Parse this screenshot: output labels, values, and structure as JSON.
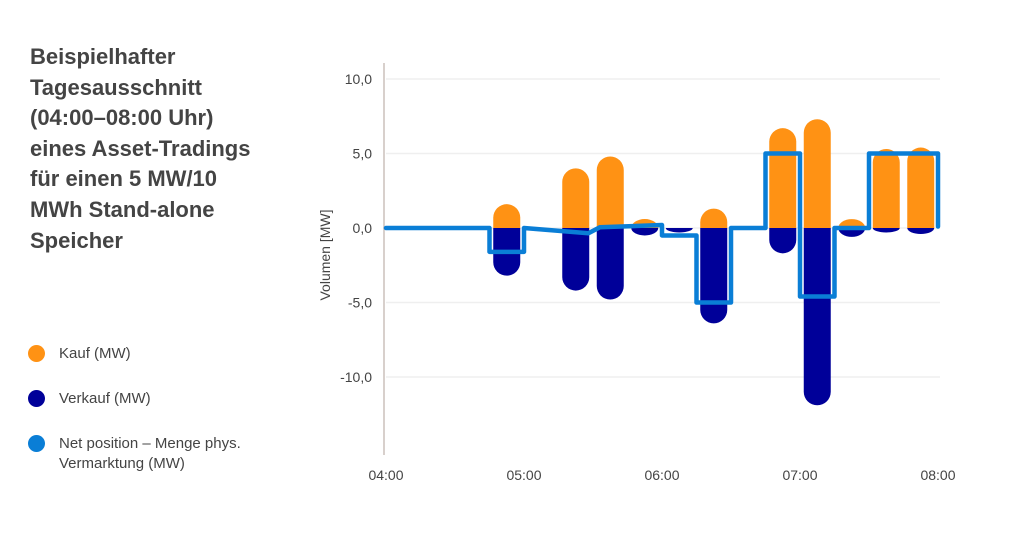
{
  "title_lines": [
    "Beispielhafter",
    "Tagesausschnitt",
    "(04:00–08:00 Uhr)",
    "eines Asset-Tradings",
    "für einen 5 MW/10",
    "MWh Stand-alone",
    "Speicher"
  ],
  "legend": [
    {
      "label": "Kauf (MW)",
      "color": "#FF9214"
    },
    {
      "label": "Verkauf (MW)",
      "color": "#000099"
    },
    {
      "label": "Net position – Menge phys. Vermarktung (MW)",
      "label_lines": [
        "Net position – Menge phys.",
        "Vermarktung (MW)"
      ],
      "color": "#0A7ED6"
    }
  ],
  "chart_data": {
    "type": "bar",
    "title": "Beispielhafter Tagesausschnitt (04:00–08:00 Uhr) eines Asset-Tradings für einen 5 MW/10 MWh Stand-alone Speicher",
    "xlabel": "",
    "ylabel": "Volumen [MW]",
    "x_unit": "minutes after 04:00",
    "xlim": [
      0,
      240
    ],
    "ylim": [
      -15,
      11
    ],
    "x_ticks": [
      {
        "t": 0,
        "label": "04:00"
      },
      {
        "t": 60,
        "label": "05:00"
      },
      {
        "t": 120,
        "label": "06:00"
      },
      {
        "t": 180,
        "label": "07:00"
      },
      {
        "t": 240,
        "label": "08:00"
      }
    ],
    "y_ticks": [
      {
        "v": 10,
        "label": "10,0"
      },
      {
        "v": 5,
        "label": "5,0"
      },
      {
        "v": 0,
        "label": "0,0"
      },
      {
        "v": -5,
        "label": "-5,0"
      },
      {
        "v": -10,
        "label": "-10,0"
      }
    ],
    "grid": true,
    "bar_slots": [
      52.5,
      82.5,
      97.5,
      112.5,
      127.5,
      142.5,
      172.5,
      187.5,
      202.5,
      217.5,
      232.5
    ],
    "series": [
      {
        "name": "Kauf (MW)",
        "color": "#FF9214",
        "values": [
          1.6,
          4.0,
          4.8,
          0.6,
          0,
          1.3,
          6.7,
          7.3,
          0.6,
          5.3,
          5.4
        ]
      },
      {
        "name": "Verkauf (MW)",
        "color": "#000099",
        "values": [
          -3.2,
          -4.2,
          -4.8,
          -0.5,
          -0.3,
          -6.4,
          -1.7,
          -11.9,
          -0.6,
          -0.3,
          -0.4
        ]
      },
      {
        "name": "Net position – Menge phys. Vermarktung (MW)",
        "type": "line",
        "color": "#0A7ED6",
        "points": [
          [
            0,
            0
          ],
          [
            45,
            0
          ],
          [
            45,
            -1.6
          ],
          [
            60,
            -1.6
          ],
          [
            60,
            0
          ],
          [
            88,
            -0.35
          ],
          [
            93,
            0.05
          ],
          [
            120,
            0.2
          ],
          [
            120,
            -0.5
          ],
          [
            135,
            -0.5
          ],
          [
            135,
            -5
          ],
          [
            150,
            -5
          ],
          [
            150,
            0
          ],
          [
            165,
            0
          ],
          [
            165,
            5
          ],
          [
            180,
            5
          ],
          [
            180,
            -4.6
          ],
          [
            195,
            -4.6
          ],
          [
            195,
            0
          ],
          [
            210,
            0
          ],
          [
            210,
            5
          ],
          [
            240,
            5
          ],
          [
            240,
            0.1
          ]
        ]
      }
    ],
    "legend_position": "left"
  }
}
